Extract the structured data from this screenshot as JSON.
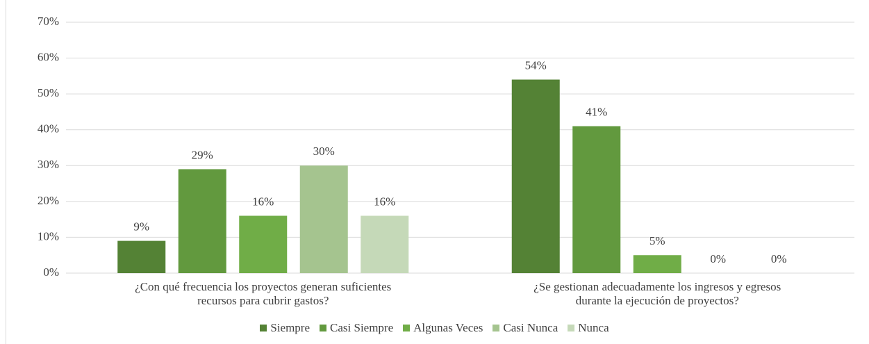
{
  "chart_data": {
    "type": "bar",
    "categories": [
      "¿Con qué frecuencia los proyectos generan suficientes\nrecursos para cubrir gastos?",
      "¿Se gestionan adecuadamente los ingresos y egresos\ndurante la ejecución de proyectos?"
    ],
    "series": [
      {
        "name": "Siempre",
        "color": "#548235",
        "values": [
          9,
          54
        ],
        "value_labels": [
          "9%",
          "54%"
        ]
      },
      {
        "name": "Casi Siempre",
        "color": "#62993e",
        "values": [
          29,
          41
        ],
        "value_labels": [
          "29%",
          "41%"
        ]
      },
      {
        "name": "Algunas Veces",
        "color": "#70ad47",
        "values": [
          16,
          5
        ],
        "value_labels": [
          "16%",
          "5%"
        ]
      },
      {
        "name": "Casi Nunca",
        "color": "#a5c48f",
        "values": [
          30,
          0
        ],
        "value_labels": [
          "30%",
          "0%"
        ]
      },
      {
        "name": "Nunca",
        "color": "#c5d9b8",
        "values": [
          16,
          0
        ],
        "value_labels": [
          "16%",
          "0%"
        ]
      }
    ],
    "ylim": [
      0,
      70
    ],
    "yticks": [
      {
        "value": 0,
        "label": "0%"
      },
      {
        "value": 10,
        "label": "10%"
      },
      {
        "value": 20,
        "label": "20%"
      },
      {
        "value": 30,
        "label": "30%"
      },
      {
        "value": 40,
        "label": "40%"
      },
      {
        "value": 50,
        "label": "50%"
      },
      {
        "value": 60,
        "label": "60%"
      },
      {
        "value": 70,
        "label": "70%"
      }
    ],
    "grid": true,
    "legend": "bottom"
  }
}
